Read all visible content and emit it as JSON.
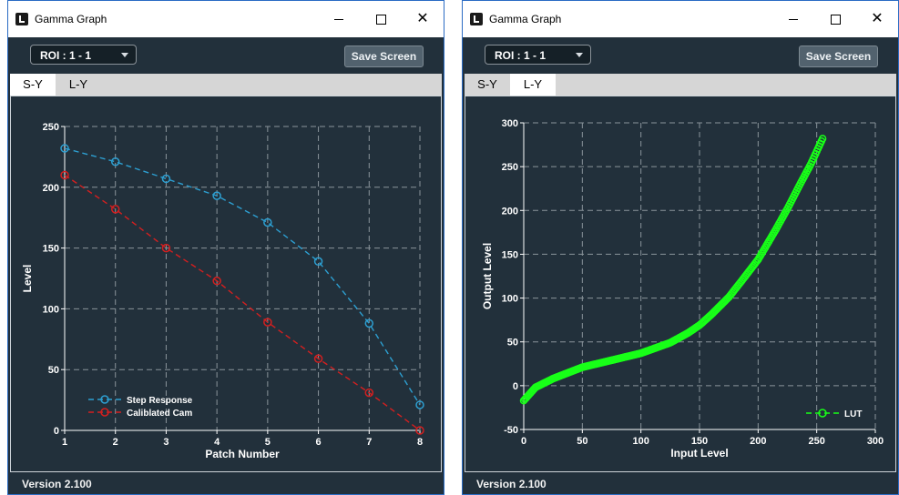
{
  "windows": [
    {
      "title": "Gamma Graph",
      "roi": "ROI : 1 - 1",
      "save_label": "Save Screen",
      "tabs": [
        {
          "label": "S-Y"
        },
        {
          "label": "L-Y"
        }
      ],
      "active_tab": "S-Y",
      "version": "Version 2.100",
      "chart_data": {
        "type": "line",
        "xlabel": "Patch Number",
        "ylabel": "Level",
        "xlim": [
          1,
          8
        ],
        "ylim": [
          0,
          250
        ],
        "xticks": [
          1,
          2,
          3,
          4,
          5,
          6,
          7,
          8
        ],
        "yticks": [
          0,
          50,
          100,
          150,
          200,
          250
        ],
        "grid": true,
        "legend_position": "bottom-left",
        "series": [
          {
            "name": "Step Response",
            "color": "#2d9fd1",
            "x": [
              1,
              2,
              3,
              4,
              5,
              6,
              7,
              8
            ],
            "y": [
              232,
              221,
              207,
              193,
              171,
              139,
              88,
              21
            ]
          },
          {
            "name": "Caliblated Cam",
            "color": "#d41f1f",
            "x": [
              1,
              2,
              3,
              4,
              5,
              6,
              7,
              8
            ],
            "y": [
              210,
              182,
              150,
              123,
              89,
              59,
              31,
              0
            ]
          }
        ]
      }
    },
    {
      "title": "Gamma Graph",
      "roi": "ROI : 1 - 1",
      "save_label": "Save Screen",
      "tabs": [
        {
          "label": "S-Y"
        },
        {
          "label": "L-Y"
        }
      ],
      "active_tab": "L-Y",
      "version": "Version 2.100",
      "chart_data": {
        "type": "scatter",
        "xlabel": "Input Level",
        "ylabel": "Output Level",
        "xlim": [
          0,
          300
        ],
        "ylim": [
          -50,
          300
        ],
        "xticks": [
          0,
          50,
          100,
          150,
          200,
          250,
          300
        ],
        "yticks": [
          -50,
          0,
          50,
          100,
          150,
          200,
          250,
          300
        ],
        "grid": true,
        "legend_position": "bottom-right",
        "series": [
          {
            "name": "LUT",
            "color": "#18ff18",
            "x": [
              0,
              10,
              25,
              50,
              75,
              100,
              125,
              140,
              150,
              160,
              175,
              185,
              200,
              215,
              225,
              235,
              245,
              255
            ],
            "y": [
              -17,
              -2,
              8,
              21,
              29,
              37,
              49,
              60,
              69,
              81,
              101,
              118,
              144,
              178,
              202,
              228,
              253,
              282
            ]
          }
        ]
      }
    }
  ]
}
